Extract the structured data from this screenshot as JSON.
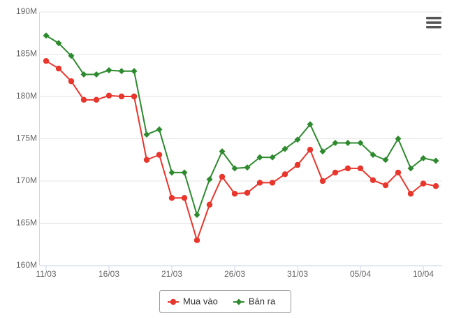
{
  "chart_data": {
    "type": "line",
    "categories": [
      "11/03",
      null,
      null,
      null,
      null,
      "16/03",
      null,
      null,
      null,
      null,
      "21/03",
      null,
      null,
      null,
      null,
      "26/03",
      null,
      null,
      null,
      null,
      "31/03",
      null,
      null,
      null,
      null,
      "05/04",
      null,
      null,
      null,
      null,
      "10/04",
      null
    ],
    "series": [
      {
        "name": "Mua vào",
        "color": "#e8362c",
        "marker": "circle",
        "values": [
          184.2,
          183.3,
          181.8,
          179.6,
          179.6,
          180.1,
          180.0,
          180.0,
          172.5,
          173.1,
          168.0,
          168.0,
          163.0,
          167.2,
          170.5,
          168.5,
          168.6,
          169.8,
          169.8,
          170.8,
          171.9,
          173.7,
          170.0,
          171.0,
          171.5,
          171.5,
          170.1,
          169.5,
          171.0,
          168.5,
          169.7,
          169.4
        ]
      },
      {
        "name": "Bán ra",
        "color": "#2e8a2e",
        "marker": "diamond",
        "values": [
          187.2,
          186.3,
          184.8,
          182.6,
          182.6,
          183.1,
          183.0,
          183.0,
          175.5,
          176.1,
          171.0,
          171.0,
          166.0,
          170.2,
          173.5,
          171.5,
          171.6,
          172.8,
          172.8,
          173.8,
          174.9,
          176.7,
          173.5,
          174.5,
          174.5,
          174.5,
          173.1,
          172.5,
          175.0,
          171.5,
          172.7,
          172.4
        ]
      }
    ],
    "ylim": [
      160,
      190
    ],
    "yticks": [
      {
        "value": 160,
        "label": "160M"
      },
      {
        "value": 165,
        "label": "165M"
      },
      {
        "value": 170,
        "label": "170M"
      },
      {
        "value": 175,
        "label": "175M"
      },
      {
        "value": 180,
        "label": "180M"
      },
      {
        "value": 185,
        "label": "185M"
      },
      {
        "value": 190,
        "label": "190M"
      }
    ],
    "grid": true,
    "legend": "bottom"
  }
}
